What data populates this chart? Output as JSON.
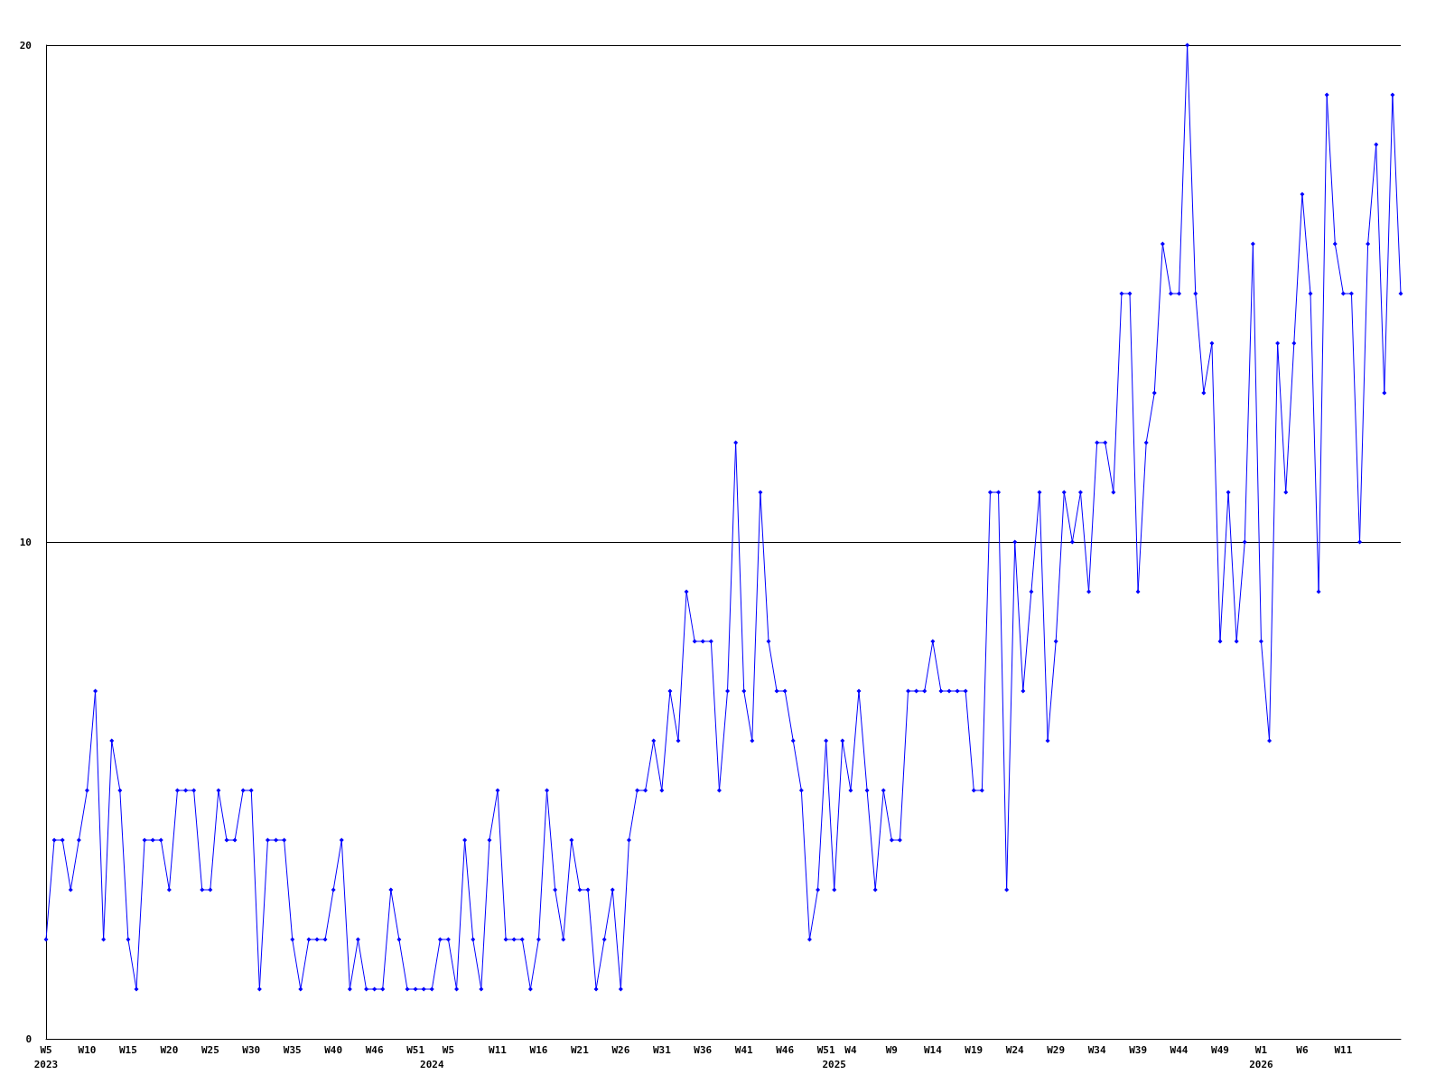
{
  "chart_data": {
    "type": "line",
    "categories": [
      "W5\n2023",
      null,
      null,
      null,
      null,
      "W10",
      null,
      null,
      null,
      null,
      "W15",
      null,
      null,
      null,
      null,
      "W20",
      null,
      null,
      null,
      null,
      "W25",
      null,
      null,
      null,
      null,
      "W30",
      null,
      null,
      null,
      null,
      "W35",
      null,
      null,
      null,
      null,
      "W40",
      null,
      null,
      null,
      null,
      "W46",
      null,
      null,
      null,
      null,
      "W51",
      null,
      "\n2024",
      null,
      "W5",
      null,
      null,
      null,
      null,
      null,
      "W11",
      null,
      null,
      null,
      null,
      "W16",
      null,
      null,
      null,
      null,
      "W21",
      null,
      null,
      null,
      null,
      "W26",
      null,
      null,
      null,
      null,
      "W31",
      null,
      null,
      null,
      null,
      "W36",
      null,
      null,
      null,
      null,
      "W41",
      null,
      null,
      null,
      null,
      "W46",
      null,
      null,
      null,
      null,
      "W51",
      "\n2025",
      null,
      "W4",
      null,
      null,
      null,
      null,
      "W9",
      null,
      null,
      null,
      null,
      "W14",
      null,
      null,
      null,
      null,
      "W19",
      null,
      null,
      null,
      null,
      "W24",
      null,
      null,
      null,
      null,
      "W29",
      null,
      null,
      null,
      null,
      "W34",
      null,
      null,
      null,
      null,
      "W39",
      null,
      null,
      null,
      null,
      "W44",
      null,
      null,
      null,
      null,
      "W49",
      null,
      null,
      null,
      null,
      "W1\n2026",
      null,
      null,
      null,
      null,
      "W6",
      null,
      null,
      null,
      null,
      "W11",
      null,
      null,
      null,
      null,
      null,
      null,
      null
    ],
    "values": [
      2,
      4,
      4,
      3,
      4,
      5,
      7,
      2,
      6,
      5,
      2,
      1,
      4,
      4,
      4,
      3,
      5,
      5,
      5,
      3,
      3,
      5,
      4,
      4,
      5,
      5,
      1,
      4,
      4,
      4,
      2,
      1,
      2,
      2,
      2,
      3,
      4,
      1,
      2,
      1,
      1,
      1,
      3,
      2,
      1,
      1,
      1,
      1,
      2,
      2,
      1,
      4,
      2,
      1,
      4,
      5,
      2,
      2,
      2,
      1,
      2,
      5,
      3,
      2,
      4,
      3,
      3,
      1,
      2,
      3,
      1,
      4,
      5,
      5,
      6,
      5,
      7,
      6,
      9,
      8,
      8,
      8,
      5,
      7,
      12,
      7,
      6,
      11,
      8,
      7,
      7,
      6,
      5,
      2,
      3,
      6,
      3,
      6,
      5,
      7,
      5,
      3,
      5,
      4,
      4,
      7,
      7,
      7,
      8,
      7,
      7,
      7,
      7,
      5,
      5,
      11,
      11,
      3,
      10,
      7,
      9,
      11,
      6,
      8,
      11,
      10,
      11,
      9,
      12,
      12,
      11,
      15,
      15,
      9,
      12,
      13,
      16,
      15,
      15,
      20,
      15,
      13,
      14,
      8,
      11,
      8,
      10,
      16,
      8,
      6,
      14,
      11,
      14,
      17,
      15,
      9,
      19,
      16,
      15,
      15,
      10,
      16,
      18,
      13,
      19,
      15
    ],
    "color": "#0000ff",
    "ylim": [
      0,
      20
    ],
    "yticks": [
      0,
      10,
      20
    ],
    "grid": "y",
    "marker": "diamond"
  }
}
